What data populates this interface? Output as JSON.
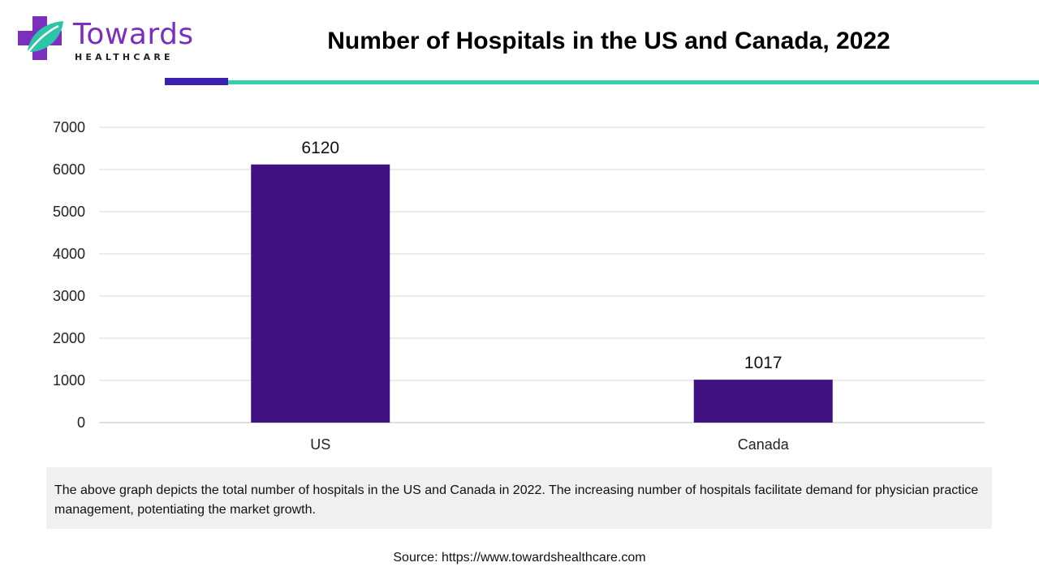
{
  "brand": {
    "name": "Towards",
    "subtitle": "HEALTHCARE",
    "logo_colors": {
      "primary": "#7b2fbf",
      "accent": "#2ec4a6",
      "dark": "#4a1a9a"
    }
  },
  "header": {
    "accent_colors": {
      "bar": "#3b1fae",
      "line": "#33d1a9"
    }
  },
  "chart_data": {
    "type": "bar",
    "title": "Number of Hospitals in the US and Canada, 2022",
    "categories": [
      "US",
      "Canada"
    ],
    "values": [
      6120,
      1017
    ],
    "data_labels": [
      "6120",
      "1017"
    ],
    "ylim": [
      0,
      7000
    ],
    "yticks": [
      0,
      1000,
      2000,
      3000,
      4000,
      5000,
      6000,
      7000
    ],
    "xlabel": "",
    "ylabel": "",
    "grid": true,
    "bar_color": "#3f1080"
  },
  "description": "The above graph depicts the total number of hospitals in the US and Canada in 2022. The increasing number of hospitals facilitate demand for physician practice management, potentiating the market growth.",
  "source": "Source: https://www.towardshealthcare.com"
}
